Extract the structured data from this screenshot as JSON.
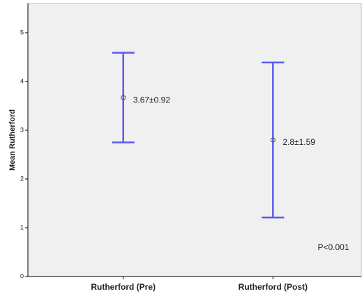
{
  "chart_data": {
    "type": "errorbar",
    "y_label": "Mean Rutherford",
    "categories": [
      "Rutherford (Pre)",
      "Rutherford (Post)"
    ],
    "values": [
      3.67,
      2.8
    ],
    "errors": [
      0.92,
      1.59
    ],
    "value_labels": [
      "3.67±0.92",
      "2.8±1.59"
    ],
    "color": "#5a5af0",
    "ylim": [
      0,
      5.6
    ],
    "yticks": [
      0,
      1,
      2,
      3,
      4,
      5
    ],
    "annotation": "P<0.001"
  }
}
